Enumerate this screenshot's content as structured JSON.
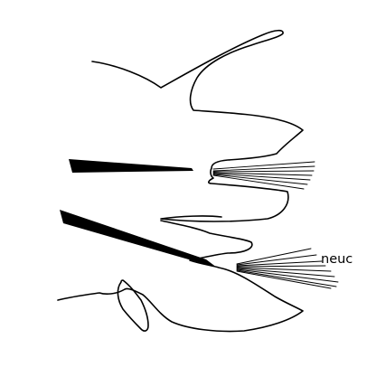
{
  "figure": {
    "labels": {
      "neuc": "neuc"
    }
  }
}
